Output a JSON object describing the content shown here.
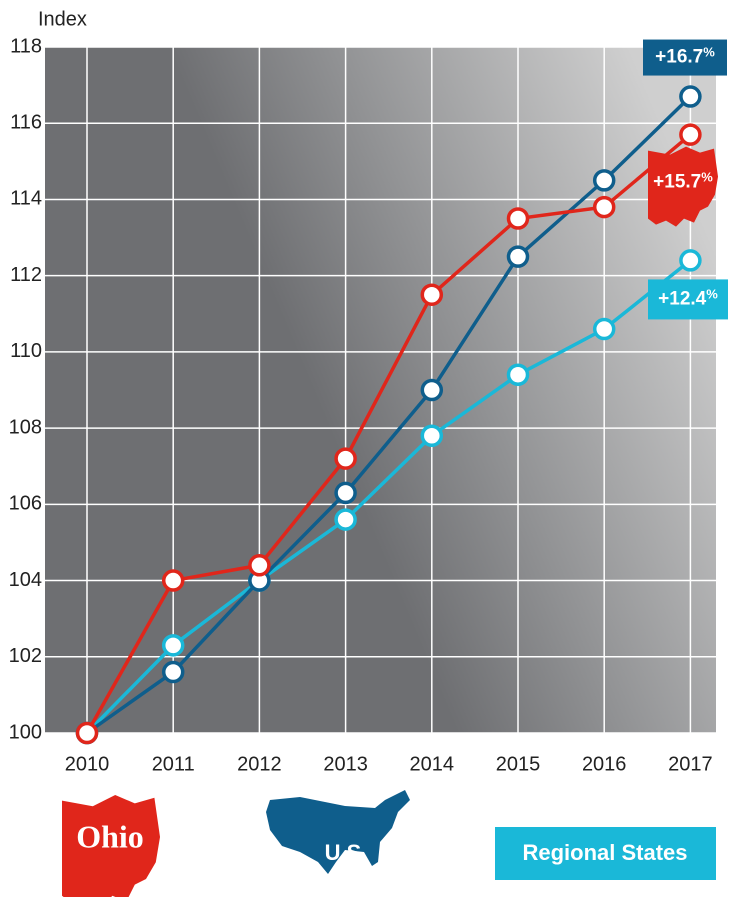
{
  "chart_data": {
    "type": "line",
    "y_label": "Index",
    "categories": [
      "2010",
      "2011",
      "2012",
      "2013",
      "2014",
      "2015",
      "2016",
      "2017"
    ],
    "series": [
      {
        "name": "Ohio",
        "color": "#e0261b",
        "values": [
          100,
          104.0,
          104.4,
          107.2,
          111.5,
          113.5,
          113.8,
          115.7
        ],
        "end_label": "+15.7",
        "end_label_unit": "%"
      },
      {
        "name": "U.S.",
        "color": "#0f5e8c",
        "values": [
          100,
          101.6,
          104.0,
          106.3,
          109.0,
          112.5,
          114.5,
          116.7
        ],
        "end_label": "+16.7",
        "end_label_unit": "%"
      },
      {
        "name": "Regional States",
        "color": "#1ab8d8",
        "values": [
          100,
          102.3,
          104.0,
          105.6,
          107.8,
          109.4,
          110.6,
          112.4
        ],
        "end_label": "+12.4",
        "end_label_unit": "%"
      }
    ],
    "ylim": [
      100,
      118
    ],
    "yticks": [
      100,
      102,
      104,
      106,
      108,
      110,
      112,
      114,
      116,
      118
    ],
    "grid": true
  }
}
